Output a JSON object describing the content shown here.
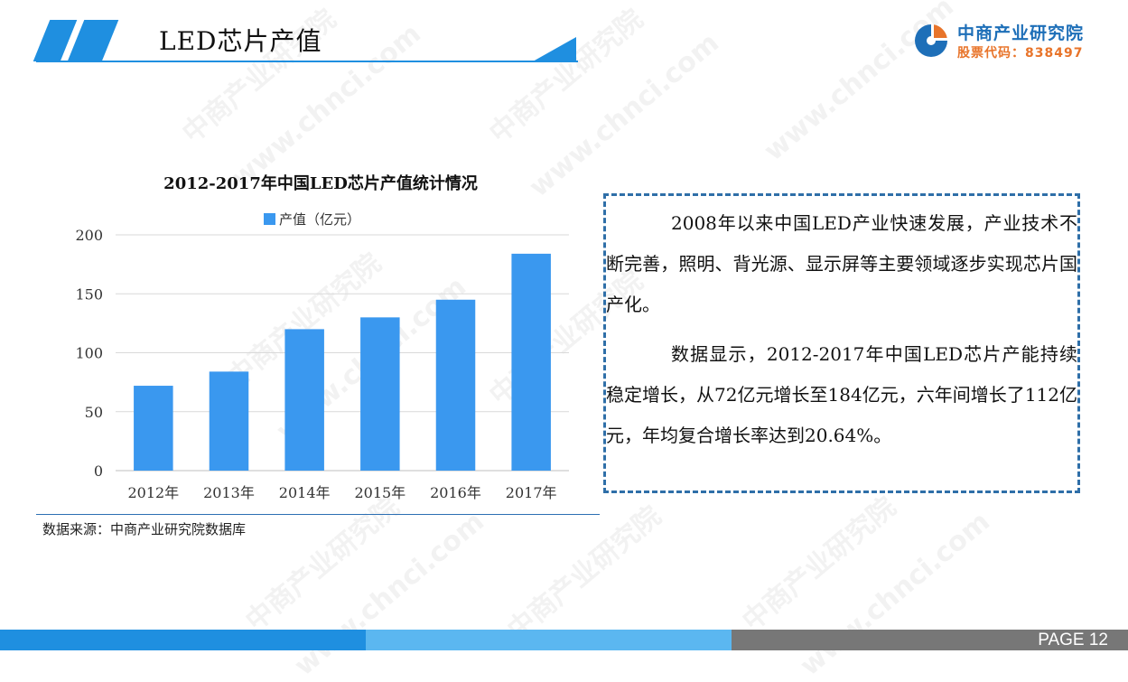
{
  "header": {
    "title": "LED芯片产值"
  },
  "logo": {
    "name": "中商产业研究院",
    "code": "股票代码：838497"
  },
  "watermark": {
    "text": "中商产业研究院",
    "url": "www.chnci.com"
  },
  "chart_data": {
    "type": "bar",
    "title": "2012-2017年中国LED芯片产值统计情况",
    "categories": [
      "2012年",
      "2013年",
      "2014年",
      "2015年",
      "2016年",
      "2017年"
    ],
    "series": [
      {
        "name": "产值（亿元）",
        "values": [
          72,
          84,
          120,
          130,
          145,
          184
        ]
      }
    ],
    "ylim": [
      0,
      200
    ],
    "yticks": [
      "0",
      "50",
      "100",
      "150",
      "200"
    ],
    "legend": "top",
    "grid": true,
    "color": "#3a98ef"
  },
  "source": "数据来源：中商产业研究院数据库",
  "textbox": {
    "p1": "2008年以来中国LED产业快速发展，产业技术不断完善，照明、背光源、显示屏等主要领域逐步实现芯片国产化。",
    "p2": "数据显示，2012-2017年中国LED芯片产能持续稳定增长，从72亿元增长至184亿元，六年间增长了112亿元，年均复合增长率达到20.64%。"
  },
  "footer": {
    "page": "PAGE  12"
  }
}
